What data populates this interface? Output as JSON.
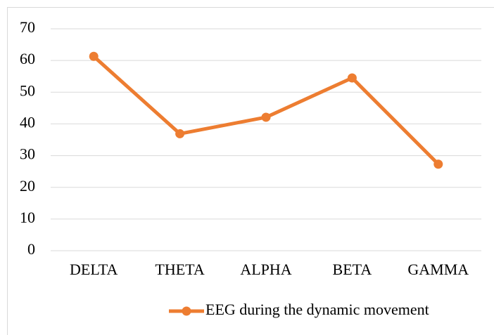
{
  "chart_data": {
    "type": "line",
    "categories": [
      "DELTA",
      "THETA",
      "ALPHA",
      "BETA",
      "GAMMA"
    ],
    "series": [
      {
        "name": "EEG during the dynamic movement",
        "color": "#ed7d31",
        "values": [
          61.3,
          36.9,
          42.1,
          54.5,
          27.3
        ]
      }
    ],
    "ylim": [
      0,
      70
    ],
    "yticks": [
      0,
      10,
      20,
      30,
      40,
      50,
      60,
      70
    ],
    "grid": true,
    "legend": "bottom"
  }
}
